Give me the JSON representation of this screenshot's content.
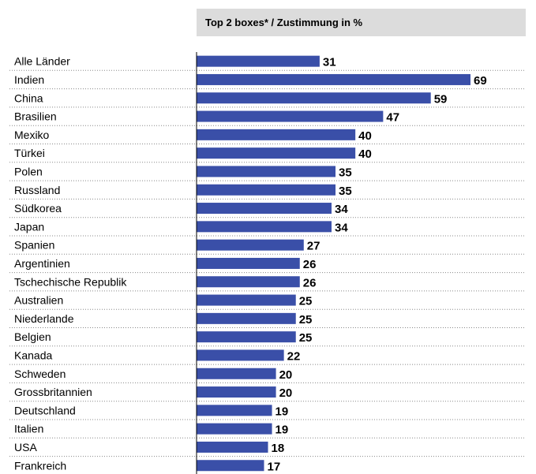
{
  "chart_data": {
    "type": "bar",
    "orientation": "horizontal",
    "title": "Top 2 boxes* / Zustimmung in %",
    "categories": [
      "Alle Länder",
      "Indien",
      "China",
      "Brasilien",
      "Mexiko",
      "Türkei",
      "Polen",
      "Russland",
      "Südkorea",
      "Japan",
      "Spanien",
      "Argentinien",
      "Tschechische Republik",
      "Australien",
      "Niederlande",
      "Belgien",
      "Kanada",
      "Schweden",
      "Grossbritannien",
      "Deutschland",
      "Italien",
      "USA",
      "Frankreich"
    ],
    "values": [
      31,
      69,
      59,
      47,
      40,
      40,
      35,
      35,
      34,
      34,
      27,
      26,
      26,
      25,
      25,
      25,
      22,
      20,
      20,
      19,
      19,
      18,
      17
    ],
    "xlim": [
      0,
      75
    ],
    "bar_color": "#3a4fa8",
    "row_separator": "dotted"
  }
}
